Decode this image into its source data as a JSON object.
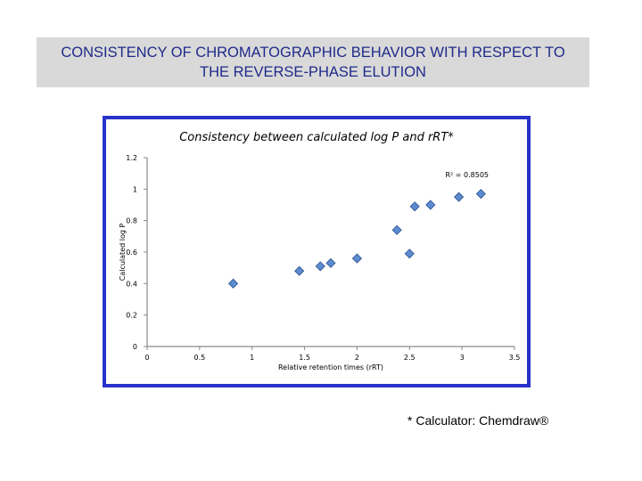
{
  "header": {
    "title": "CONSISTENCY OF CHROMATOGRAPHIC BEHAVIOR WITH RESPECT TO THE REVERSE-PHASE ELUTION"
  },
  "footnote": "* Calculator: Chemdraw®",
  "colors": {
    "banner": "#d9d9d9",
    "title_text": "#1f2a8a",
    "frame": "#2832c9",
    "marker_fill": "#5b8bd0",
    "marker_stroke": "#2c4f8c"
  },
  "chart_data": {
    "type": "scatter",
    "title": "Consistency between calculated log P and rRT*",
    "xlabel": "Relative retention times (rRT)",
    "ylabel": "Calculated log P",
    "xlim": [
      0,
      3.5
    ],
    "ylim": [
      0,
      1.2
    ],
    "xticks": [
      "0",
      "0.5",
      "1",
      "1.5",
      "2",
      "2.5",
      "3",
      "3.5"
    ],
    "yticks": [
      "0",
      "0.2",
      "0.4",
      "0.6",
      "0.8",
      "1",
      "1.2"
    ],
    "annotation": "R² = 0.8505",
    "marker": "diamond",
    "grid": false,
    "points": [
      {
        "x": 0.82,
        "y": 0.4
      },
      {
        "x": 1.45,
        "y": 0.48
      },
      {
        "x": 1.65,
        "y": 0.51
      },
      {
        "x": 1.75,
        "y": 0.53
      },
      {
        "x": 2.0,
        "y": 0.56
      },
      {
        "x": 2.38,
        "y": 0.74
      },
      {
        "x": 2.5,
        "y": 0.59
      },
      {
        "x": 2.55,
        "y": 0.89
      },
      {
        "x": 2.7,
        "y": 0.9
      },
      {
        "x": 2.97,
        "y": 0.95
      },
      {
        "x": 3.18,
        "y": 0.97
      }
    ]
  }
}
